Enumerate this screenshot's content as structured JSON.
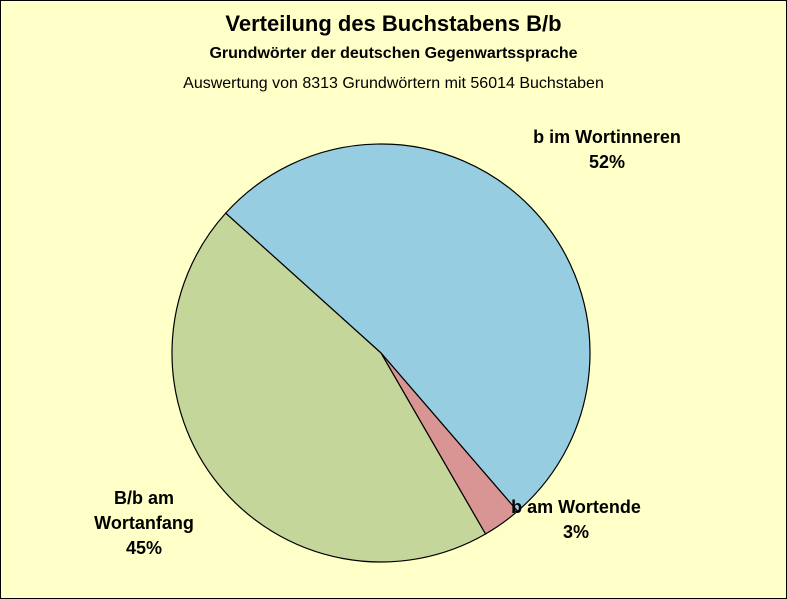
{
  "chart_data": {
    "type": "pie",
    "title": "Verteilung des Buchstabens B/b",
    "subtitle": "Grundwörter der deutschen Gegenwartssprache",
    "note": "Auswertung von 8313 Grundwörtern mit 56014 Buchstaben",
    "categories": [
      "b im Wortinneren",
      "b am Wortende",
      "B/b am Wortanfang"
    ],
    "values": [
      52,
      3,
      45
    ],
    "value_labels": [
      "52%",
      "3%",
      "45%"
    ],
    "colors": [
      "#96cde0",
      "#d99594",
      "#c5d69b"
    ]
  }
}
